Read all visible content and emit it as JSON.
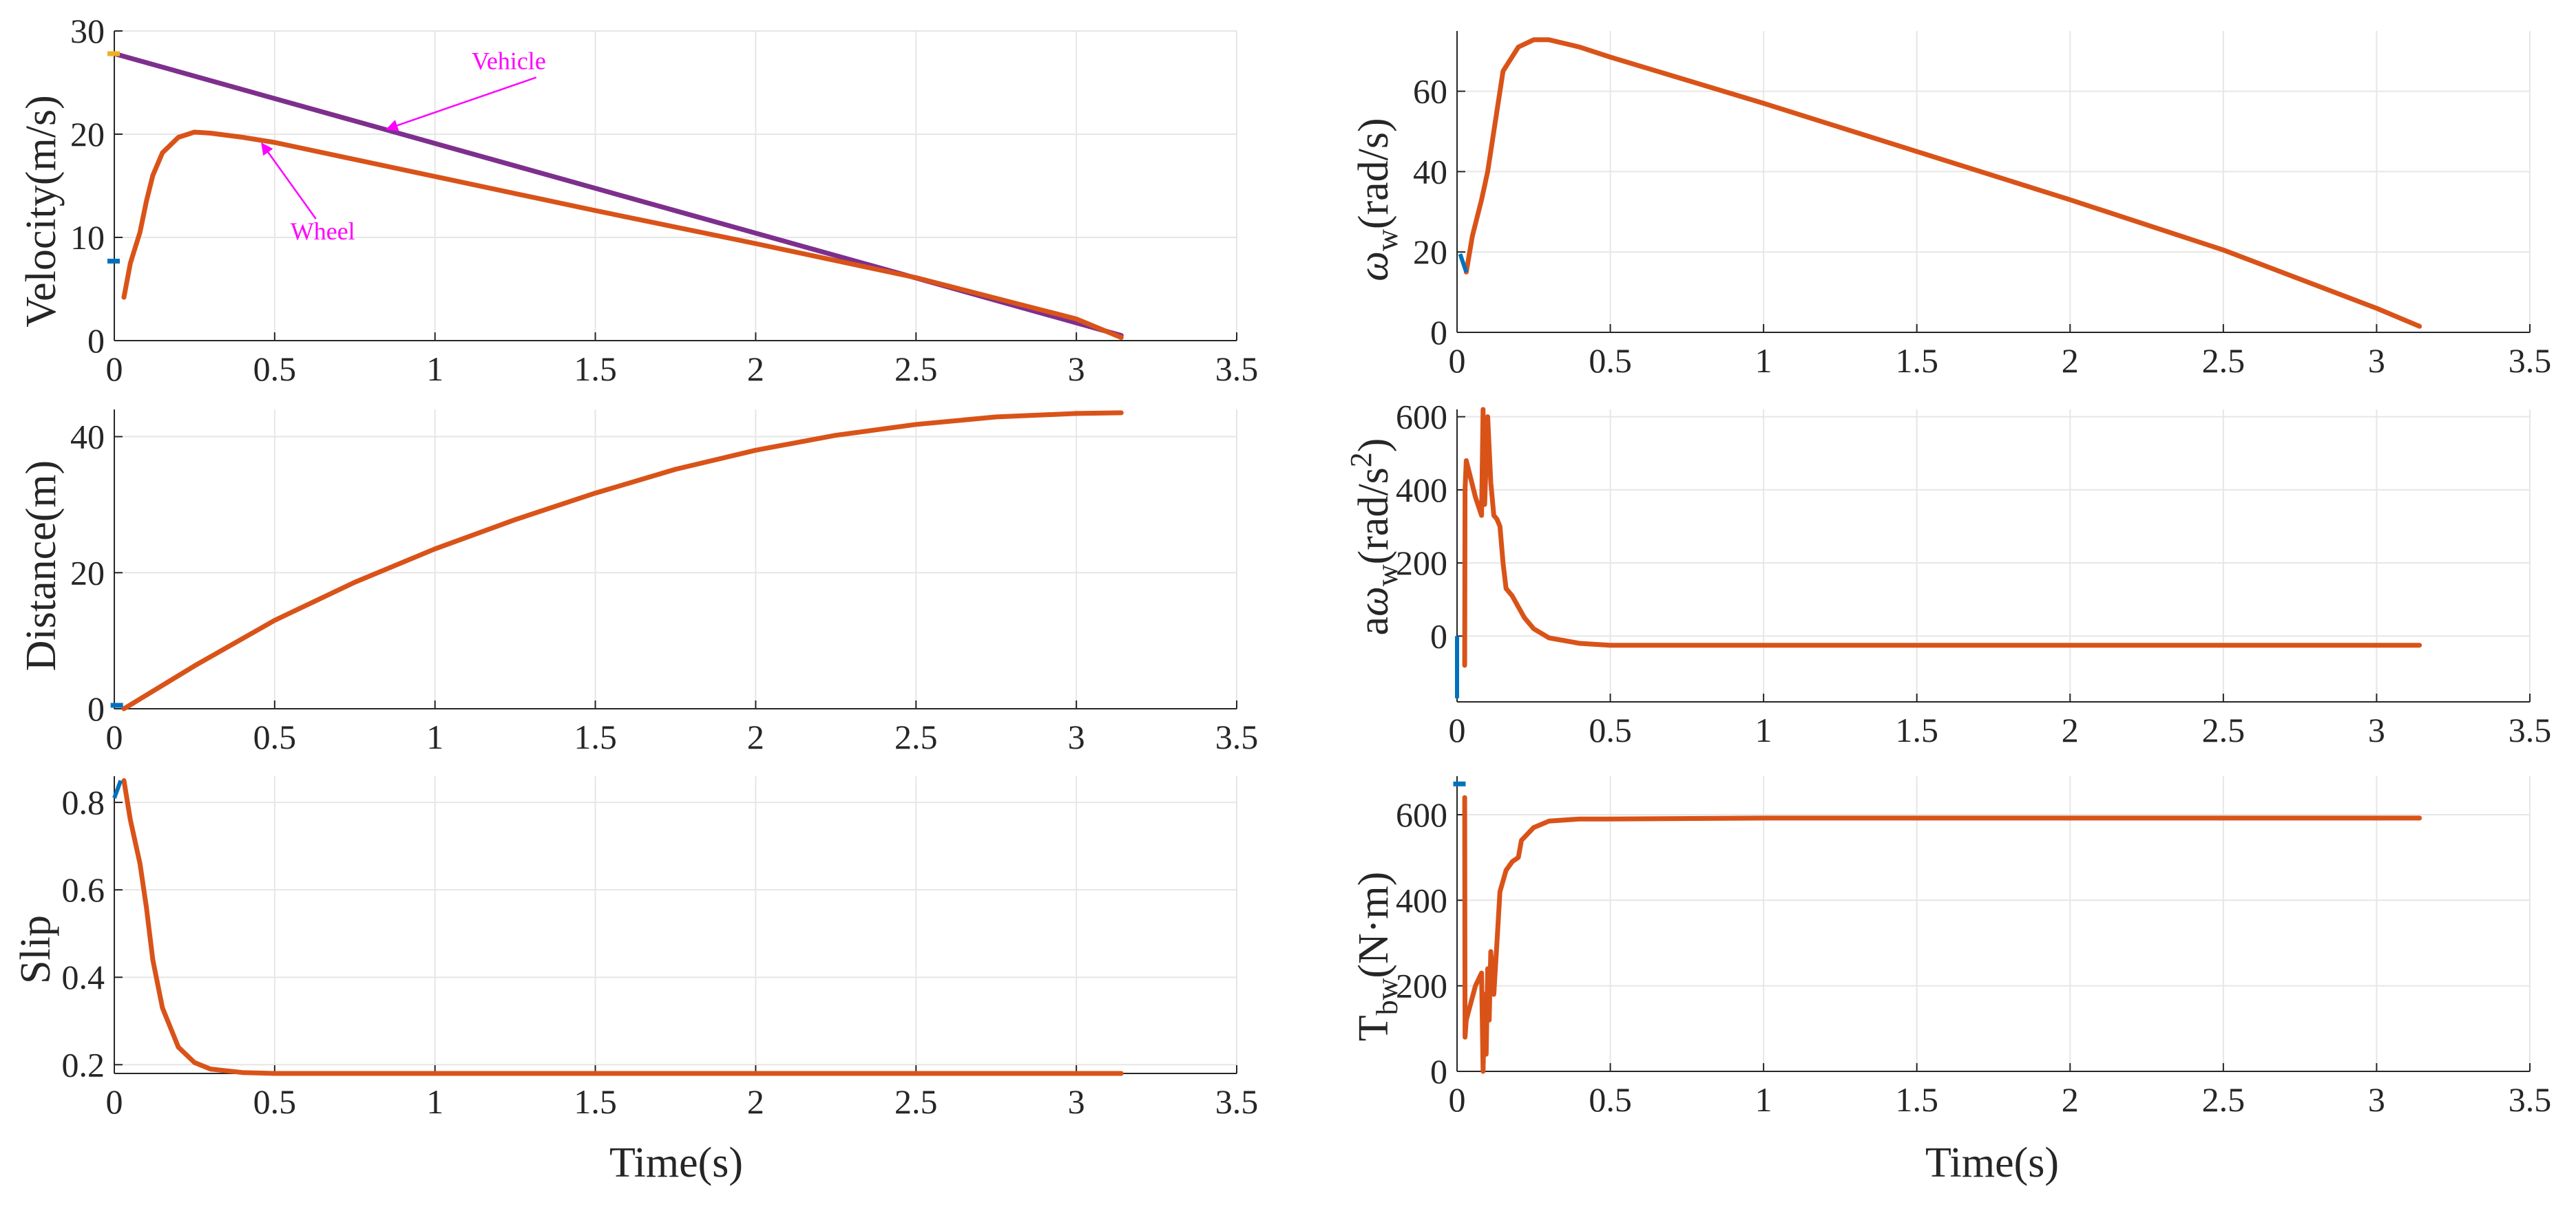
{
  "figure": {
    "colors": {
      "series": "#D95319",
      "vehicle": "#7E2F8E",
      "marker": "#0072BD",
      "marker_alt": "#EDB120",
      "annotation": "#FF00FF"
    }
  },
  "chart_data": [
    {
      "id": "velocity",
      "type": "line",
      "ylabel": "Velocity(m/s)",
      "xlabel": "",
      "xlim": [
        0,
        3.5
      ],
      "ylim": [
        0,
        30
      ],
      "xticks": [
        "0",
        "0.5",
        "1",
        "1.5",
        "2",
        "2.5",
        "3",
        "3.5"
      ],
      "yticks": [
        "0",
        "10",
        "20",
        "30"
      ],
      "series": [
        {
          "name": "Vehicle",
          "color": "#7E2F8E",
          "x": [
            0,
            3.14
          ],
          "y": [
            27.8,
            0.5
          ]
        },
        {
          "name": "Wheel",
          "color": "#D95319",
          "x": [
            0.03,
            0.05,
            0.08,
            0.1,
            0.12,
            0.15,
            0.2,
            0.25,
            0.3,
            0.4,
            0.5,
            1.0,
            1.5,
            2.0,
            2.5,
            3.0,
            3.14
          ],
          "y": [
            4.2,
            7.5,
            10.5,
            13.5,
            16.0,
            18.2,
            19.7,
            20.2,
            20.1,
            19.7,
            19.2,
            15.9,
            12.6,
            9.4,
            6.1,
            2.1,
            0.3
          ]
        }
      ],
      "annotations": [
        {
          "text": "Vehicle",
          "x": 1.23,
          "y": 26.3,
          "target_x": 0.85,
          "target_y": 20.5
        },
        {
          "text": "Wheel",
          "x": 0.65,
          "y": 9.8,
          "target_x": 0.46,
          "target_y": 19.1
        }
      ],
      "markers": [
        {
          "x": 0,
          "y": 27.8,
          "color": "#EDB120"
        },
        {
          "x": 0,
          "y": 7.7,
          "color": "#0072BD"
        }
      ]
    },
    {
      "id": "omega",
      "type": "line",
      "ylabel": "ω_w(rad/s)",
      "ylabel_parts": {
        "greek": "ω",
        "sub": "w",
        "rest": "(rad/s)"
      },
      "xlabel": "",
      "xlim": [
        0,
        3.5
      ],
      "ylim": [
        0,
        75
      ],
      "xticks": [
        "0",
        "0.5",
        "1",
        "1.5",
        "2",
        "2.5",
        "3",
        "3.5"
      ],
      "yticks": [
        "0",
        "20",
        "40",
        "60"
      ],
      "series": [
        {
          "name": "omega_w",
          "color": "#D95319",
          "x": [
            0.03,
            0.05,
            0.08,
            0.1,
            0.12,
            0.15,
            0.2,
            0.25,
            0.3,
            0.4,
            0.5,
            1.0,
            1.5,
            2.0,
            2.5,
            3.0,
            3.14
          ],
          "y": [
            15.0,
            24.0,
            33.0,
            40.0,
            50.0,
            65.0,
            71.0,
            72.8,
            72.8,
            71.0,
            68.5,
            57.0,
            45.0,
            33.0,
            20.5,
            6.0,
            1.5
          ]
        }
      ],
      "markers": [
        {
          "x": 0.01,
          "y": 19.5,
          "color": "#0072BD",
          "x2": 0.03,
          "y2": 15.0
        }
      ]
    },
    {
      "id": "distance",
      "type": "line",
      "ylabel": "Distance(m)",
      "xlabel": "",
      "xlim": [
        0,
        3.5
      ],
      "ylim": [
        0,
        44
      ],
      "xticks": [
        "0",
        "0.5",
        "1",
        "1.5",
        "2",
        "2.5",
        "3",
        "3.5"
      ],
      "yticks": [
        "0",
        "20",
        "40"
      ],
      "series": [
        {
          "name": "distance",
          "color": "#D95319",
          "x": [
            0.03,
            0.25,
            0.5,
            0.75,
            1.0,
            1.25,
            1.5,
            1.75,
            2.0,
            2.25,
            2.5,
            2.75,
            3.0,
            3.14
          ],
          "y": [
            0,
            6.3,
            13.0,
            18.6,
            23.5,
            27.8,
            31.7,
            35.2,
            38.0,
            40.2,
            41.8,
            42.9,
            43.4,
            43.5
          ]
        }
      ],
      "markers": [
        {
          "x": 0.01,
          "y": 0.5,
          "color": "#0072BD"
        }
      ]
    },
    {
      "id": "aomega",
      "type": "line",
      "ylabel": "aω_w(rad/s^2)",
      "ylabel_parts": {
        "pre": "a",
        "greek": "ω",
        "sub": "w",
        "rest": "(rad/s",
        "sup": "2",
        "end": ")"
      },
      "xlabel": "",
      "xlim": [
        0,
        3.5
      ],
      "ylim": [
        -180,
        620
      ],
      "xticks": [
        "0",
        "0.5",
        "1",
        "1.5",
        "2",
        "2.5",
        "3",
        "3.5"
      ],
      "yticks": [
        "0",
        "200",
        "400",
        "600"
      ],
      "series": [
        {
          "name": "alpha_w",
          "color": "#D95319",
          "x": [
            0.025,
            0.026,
            0.03,
            0.06,
            0.08,
            0.085,
            0.09,
            0.1,
            0.11,
            0.12,
            0.13,
            0.14,
            0.15,
            0.16,
            0.18,
            0.2,
            0.22,
            0.25,
            0.3,
            0.4,
            0.5,
            0.75,
            1.0,
            3.14
          ],
          "y": [
            -80,
            400,
            480,
            380,
            330,
            620,
            360,
            600,
            420,
            330,
            320,
            300,
            200,
            130,
            110,
            80,
            50,
            20,
            -5,
            -20,
            -25,
            -25,
            -25,
            -25
          ]
        }
      ],
      "markers": [
        {
          "x": 0.0,
          "y": 0,
          "color": "#0072BD",
          "x2": 0.0,
          "y2": -170
        }
      ]
    },
    {
      "id": "slip",
      "type": "line",
      "ylabel": "Slip",
      "xlabel": "Time(s)",
      "xlim": [
        0,
        3.5
      ],
      "ylim": [
        0.18,
        0.86
      ],
      "xticks": [
        "0",
        "0.5",
        "1",
        "1.5",
        "2",
        "2.5",
        "3",
        "3.5"
      ],
      "yticks": [
        "0.2",
        "0.4",
        "0.6",
        "0.8"
      ],
      "series": [
        {
          "name": "slip",
          "color": "#D95319",
          "x": [
            0.03,
            0.05,
            0.08,
            0.1,
            0.12,
            0.15,
            0.2,
            0.25,
            0.3,
            0.4,
            0.5,
            1.0,
            2.0,
            3.14
          ],
          "y": [
            0.85,
            0.76,
            0.66,
            0.56,
            0.44,
            0.33,
            0.24,
            0.205,
            0.19,
            0.182,
            0.18,
            0.18,
            0.18,
            0.18
          ]
        }
      ],
      "markers": [
        {
          "x": 0.0,
          "y": 0.81,
          "color": "#0072BD",
          "x2": 0.02,
          "y2": 0.85
        }
      ]
    },
    {
      "id": "torque",
      "type": "line",
      "ylabel": "T_bw(N·m)",
      "ylabel_parts": {
        "pre": "T",
        "sub": "bw",
        "rest": "(N·m)"
      },
      "xlabel": "Time(s)",
      "xlim": [
        0,
        3.5
      ],
      "ylim": [
        0,
        690
      ],
      "xticks": [
        "0",
        "0.5",
        "1",
        "1.5",
        "2",
        "2.5",
        "3",
        "3.5"
      ],
      "yticks": [
        "0",
        "200",
        "400",
        "600"
      ],
      "series": [
        {
          "name": "T_bw",
          "color": "#D95319",
          "x": [
            0.025,
            0.026,
            0.03,
            0.06,
            0.08,
            0.085,
            0.09,
            0.095,
            0.1,
            0.105,
            0.11,
            0.12,
            0.13,
            0.14,
            0.16,
            0.18,
            0.2,
            0.21,
            0.25,
            0.3,
            0.4,
            0.5,
            1.0,
            3.14
          ],
          "y": [
            640,
            80,
            120,
            200,
            230,
            0,
            180,
            40,
            240,
            120,
            280,
            180,
            300,
            420,
            470,
            490,
            500,
            540,
            570,
            585,
            590,
            590,
            592,
            592
          ]
        }
      ],
      "markers": [
        {
          "x": 0.01,
          "y": 672,
          "color": "#0072BD"
        }
      ]
    }
  ]
}
